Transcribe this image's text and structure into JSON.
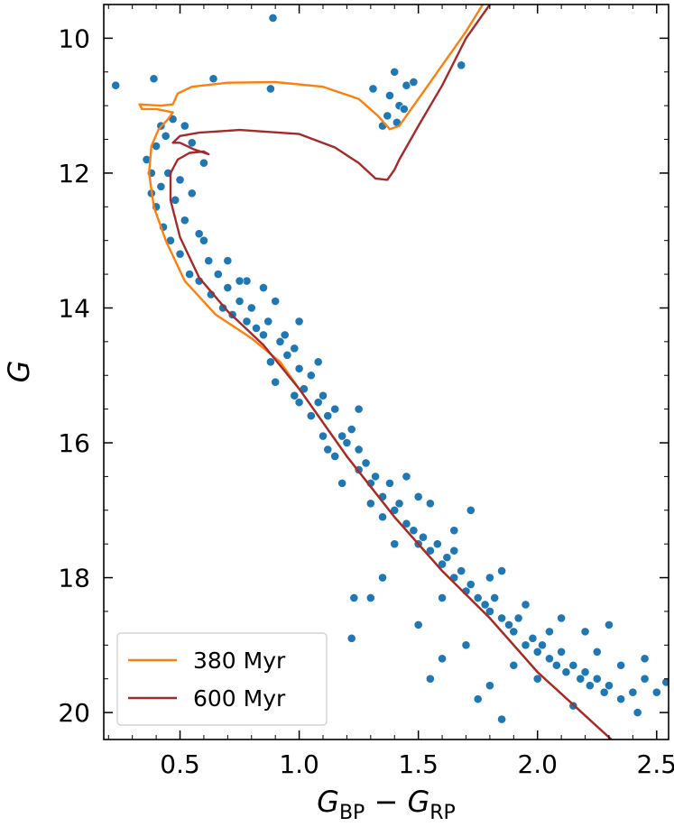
{
  "chart_data": {
    "type": "scatter",
    "xlabel_parts": [
      "G",
      "BP",
      " − G",
      "RP"
    ],
    "ylabel": "G",
    "xlim": [
      0.18,
      2.55
    ],
    "ylim": [
      20.4,
      9.5
    ],
    "xticks": [
      0.5,
      {
        "value": 1,
        "label": "1.0"
      },
      1.5,
      {
        "value": 2,
        "label": "2.0"
      },
      2.5
    ],
    "yticks": [
      10,
      12,
      14,
      16,
      18,
      20
    ],
    "xminor": [
      0.2,
      0.3,
      0.4,
      0.6,
      0.7,
      0.8,
      0.9,
      1.1,
      1.2,
      1.3,
      1.4,
      1.6,
      1.7,
      1.8,
      1.9,
      2.1,
      2.2,
      2.3,
      2.4
    ],
    "yminor": [
      9.5,
      10.5,
      11,
      11.5,
      12.5,
      13,
      13.5,
      14.5,
      15,
      15.5,
      16.5,
      17,
      17.5,
      18.5,
      19,
      19.5
    ],
    "legend": "lower left",
    "series": [
      {
        "type": "scatter",
        "color": "#1f77b4",
        "x": [
          0.23,
          0.39,
          0.89,
          0.88,
          0.64,
          1.31,
          1.38,
          1.4,
          1.42,
          1.45,
          1.48,
          1.37,
          1.41,
          1.44,
          1.68,
          1.35,
          0.36,
          0.38,
          0.4,
          0.42,
          0.44,
          0.47,
          0.52,
          0.55,
          0.6,
          0.38,
          0.4,
          0.42,
          0.45,
          0.48,
          0.5,
          0.52,
          0.55,
          0.58,
          0.43,
          0.46,
          0.5,
          0.54,
          0.6,
          0.62,
          0.58,
          0.63,
          0.66,
          0.7,
          0.68,
          0.72,
          0.75,
          0.78,
          0.8,
          0.82,
          0.85,
          0.87,
          0.78,
          0.85,
          0.9,
          0.92,
          0.95,
          0.98,
          0.88,
          0.9,
          0.94,
          1.0,
          1.02,
          1.05,
          1.08,
          1.1,
          1.12,
          1.0,
          1.15,
          1.18,
          1.2,
          1.22,
          1.1,
          1.15,
          1.25,
          1.25,
          1.28,
          1.3,
          1.32,
          1.35,
          1.38,
          1.4,
          1.42,
          1.45,
          1.3,
          1.35,
          1.48,
          1.5,
          1.52,
          1.55,
          1.58,
          1.6,
          1.62,
          1.65,
          1.68,
          1.7,
          1.72,
          1.75,
          1.78,
          1.8,
          1.82,
          1.85,
          1.88,
          1.9,
          1.92,
          1.95,
          1.98,
          2.0,
          2.02,
          2.05,
          2.08,
          2.1,
          2.12,
          2.15,
          2.18,
          2.2,
          2.22,
          2.25,
          2.28,
          2.3,
          2.35,
          2.4,
          2.45,
          2.5,
          2.54,
          2.42,
          2.15,
          2.0,
          1.9,
          1.8,
          1.7,
          1.6,
          1.75,
          1.85,
          1.55,
          1.5,
          1.3,
          1.22,
          1.23,
          1.35,
          1.72,
          1.55,
          1.45,
          1.65,
          1.85,
          2.1,
          2.3,
          2.2,
          2.45,
          1.18,
          1.05,
          0.98,
          1.12,
          1.6,
          1.4,
          1.95,
          2.05,
          1.0,
          1.08,
          1.25,
          0.7,
          0.75,
          1.5,
          1.65,
          1.8,
          2.25,
          2.35
        ],
        "values": [
          10.7,
          10.6,
          9.7,
          10.75,
          10.6,
          10.75,
          10.85,
          10.5,
          11.0,
          10.7,
          10.65,
          11.15,
          11.25,
          11.05,
          10.4,
          11.3,
          11.8,
          12.0,
          11.6,
          11.3,
          11.45,
          11.2,
          11.3,
          11.55,
          11.85,
          12.3,
          12.5,
          12.2,
          12.0,
          12.4,
          12.1,
          12.7,
          12.3,
          12.9,
          12.8,
          13.0,
          13.2,
          13.5,
          13.0,
          13.3,
          13.6,
          13.8,
          13.5,
          13.7,
          14.0,
          14.1,
          13.9,
          14.2,
          14.0,
          14.3,
          14.4,
          14.2,
          13.6,
          13.7,
          13.9,
          14.5,
          14.7,
          14.6,
          14.8,
          15.1,
          14.4,
          14.9,
          15.2,
          15.0,
          15.4,
          15.3,
          15.6,
          15.4,
          15.5,
          15.9,
          16.0,
          15.8,
          15.9,
          16.2,
          16.1,
          16.4,
          16.3,
          16.6,
          16.5,
          16.8,
          16.6,
          17.0,
          16.9,
          17.2,
          16.9,
          17.1,
          17.3,
          17.5,
          17.4,
          17.6,
          17.5,
          17.8,
          17.7,
          18.0,
          17.9,
          18.2,
          18.1,
          18.3,
          18.4,
          18.5,
          18.3,
          18.6,
          18.7,
          18.8,
          18.6,
          19.0,
          18.9,
          19.1,
          19.0,
          19.2,
          19.3,
          19.1,
          19.4,
          19.3,
          19.5,
          19.4,
          19.6,
          19.5,
          19.7,
          19.6,
          19.8,
          19.7,
          19.5,
          19.7,
          19.55,
          20.0,
          19.9,
          19.5,
          19.3,
          19.6,
          19.0,
          19.2,
          19.8,
          20.1,
          19.5,
          18.7,
          18.3,
          18.9,
          18.3,
          18.0,
          17.0,
          16.9,
          16.5,
          17.3,
          17.9,
          18.6,
          18.7,
          18.8,
          19.2,
          16.6,
          15.6,
          15.3,
          16.1,
          18.3,
          17.5,
          18.4,
          18.8,
          14.2,
          14.8,
          15.5,
          13.3,
          13.6,
          16.8,
          17.6,
          18.0,
          19.1,
          19.3
        ]
      },
      {
        "type": "line",
        "name": "380 Myr",
        "color": "#ff7f0e",
        "x": [
          2.31,
          2.0,
          1.8,
          1.6,
          1.4,
          1.2,
          1.0,
          0.92,
          0.8,
          0.65,
          0.52,
          0.44,
          0.39,
          0.37,
          0.38,
          0.41,
          0.45,
          0.47,
          0.4,
          0.34,
          0.33,
          0.42,
          0.47,
          0.49,
          0.55,
          0.7,
          0.9,
          1.1,
          1.25,
          1.33,
          1.38,
          1.42,
          1.5,
          1.6,
          1.7,
          1.77
        ],
        "values": [
          20.4,
          19.4,
          18.6,
          17.9,
          17.1,
          16.2,
          15.2,
          14.8,
          14.45,
          14.1,
          13.6,
          13.0,
          12.5,
          12.0,
          11.6,
          11.35,
          11.2,
          11.1,
          11.05,
          11.05,
          10.98,
          11.0,
          10.98,
          10.82,
          10.72,
          10.66,
          10.65,
          10.72,
          10.9,
          11.15,
          11.35,
          11.3,
          10.9,
          10.4,
          9.9,
          9.5
        ]
      },
      {
        "type": "line",
        "name": "600 Myr",
        "color": "#a52a2a",
        "x": [
          2.31,
          2.0,
          1.8,
          1.6,
          1.4,
          1.2,
          1.0,
          0.85,
          0.7,
          0.58,
          0.5,
          0.46,
          0.46,
          0.49,
          0.54,
          0.6,
          0.62,
          0.56,
          0.5,
          0.47,
          0.5,
          0.58,
          0.75,
          1.0,
          1.15,
          1.25,
          1.32,
          1.37,
          1.4,
          1.42,
          1.5,
          1.6,
          1.7,
          1.8
        ],
        "values": [
          20.4,
          19.4,
          18.6,
          17.9,
          17.1,
          16.2,
          15.2,
          14.55,
          14.05,
          13.55,
          12.95,
          12.4,
          12.0,
          11.8,
          11.7,
          11.68,
          11.72,
          11.65,
          11.55,
          11.55,
          11.45,
          11.4,
          11.36,
          11.42,
          11.62,
          11.85,
          12.08,
          12.1,
          11.95,
          11.8,
          11.3,
          10.7,
          10.0,
          9.5
        ]
      }
    ]
  }
}
